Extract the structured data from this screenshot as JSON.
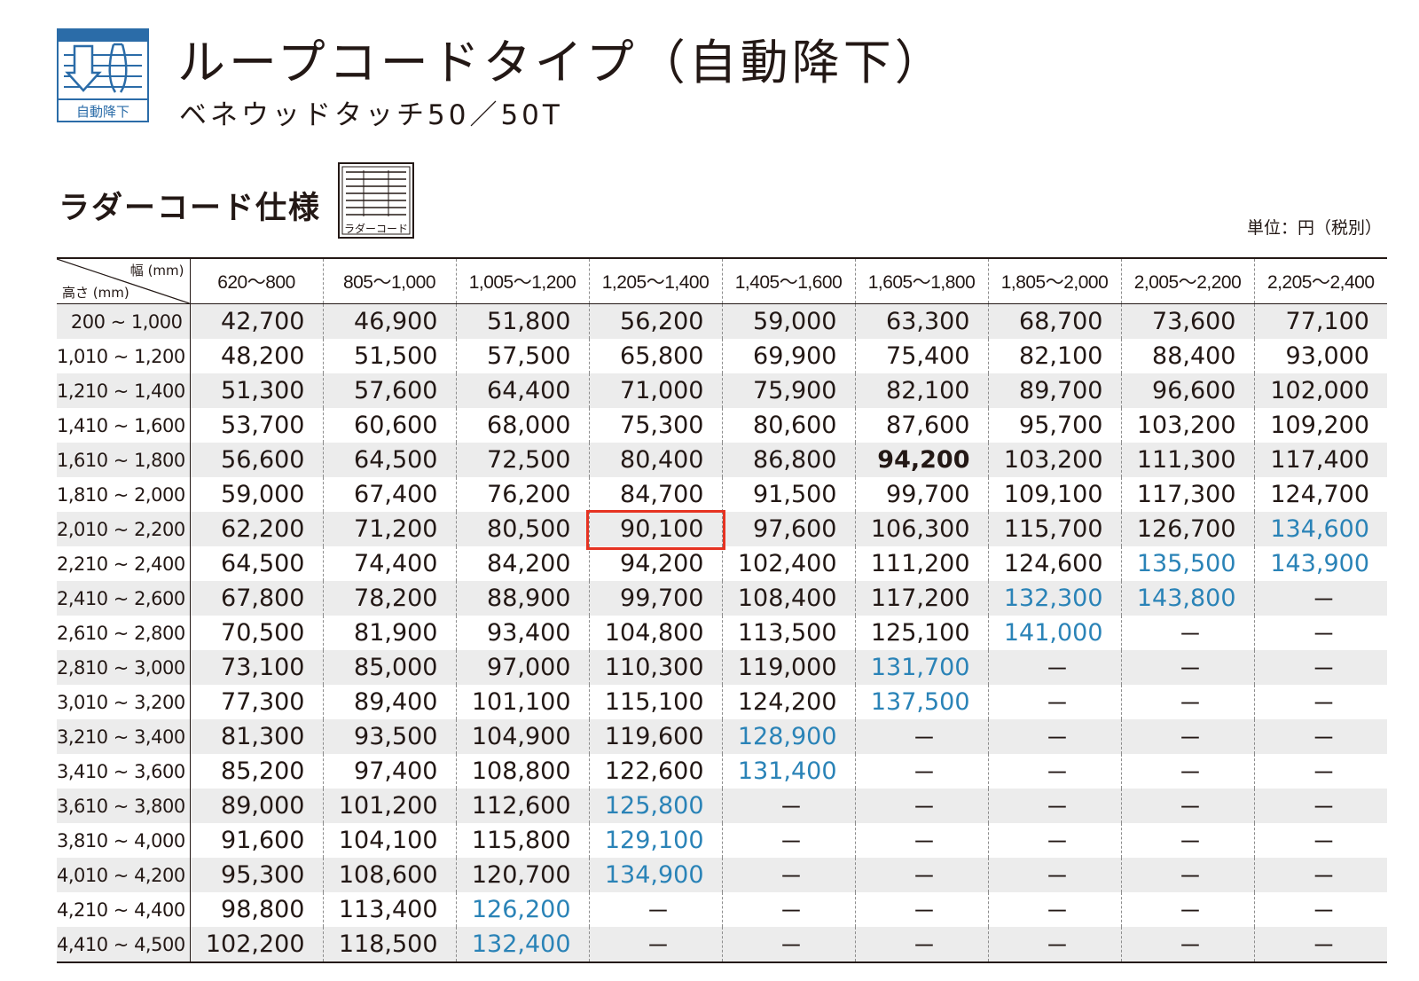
{
  "header": {
    "icon_label": "自動降下",
    "title": "ループコードタイプ（自動降下）",
    "subtitle": "ベネウッドタッチ50／50T"
  },
  "section": {
    "title": "ラダーコード仕様",
    "icon_label": "ラダーコード",
    "unit": "単位：円（税別）"
  },
  "table": {
    "corner_width": "幅 (mm)",
    "corner_height": "高さ (mm)",
    "columns": [
      "620～800",
      "805～1,000",
      "1,005～1,200",
      "1,205～1,400",
      "1,405～1,600",
      "1,605～1,800",
      "1,805～2,000",
      "2,005～2,200",
      "2,205～2,400"
    ],
    "rows": [
      {
        "height": "200 ~ 1,000",
        "values": [
          "42,700",
          "46,900",
          "51,800",
          "56,200",
          "59,000",
          "63,300",
          "68,700",
          "73,600",
          "77,100"
        ]
      },
      {
        "height": "1,010 ~ 1,200",
        "values": [
          "48,200",
          "51,500",
          "57,500",
          "65,800",
          "69,900",
          "75,400",
          "82,100",
          "88,400",
          "93,000"
        ]
      },
      {
        "height": "1,210 ~ 1,400",
        "values": [
          "51,300",
          "57,600",
          "64,400",
          "71,000",
          "75,900",
          "82,100",
          "89,700",
          "96,600",
          "102,000"
        ]
      },
      {
        "height": "1,410 ~ 1,600",
        "values": [
          "53,700",
          "60,600",
          "68,000",
          "75,300",
          "80,600",
          "87,600",
          "95,700",
          "103,200",
          "109,200"
        ]
      },
      {
        "height": "1,610 ~ 1,800",
        "values": [
          "56,600",
          "64,500",
          "72,500",
          "80,400",
          "86,800",
          "94,200",
          "103,200",
          "111,300",
          "117,400"
        ]
      },
      {
        "height": "1,810 ~ 2,000",
        "values": [
          "59,000",
          "67,400",
          "76,200",
          "84,700",
          "91,500",
          "99,700",
          "109,100",
          "117,300",
          "124,700"
        ]
      },
      {
        "height": "2,010 ~ 2,200",
        "values": [
          "62,200",
          "71,200",
          "80,500",
          "90,100",
          "97,600",
          "106,300",
          "115,700",
          "126,700",
          "134,600"
        ]
      },
      {
        "height": "2,210 ~ 2,400",
        "values": [
          "64,500",
          "74,400",
          "84,200",
          "94,200",
          "102,400",
          "111,200",
          "124,600",
          "135,500",
          "143,900"
        ]
      },
      {
        "height": "2,410 ~ 2,600",
        "values": [
          "67,800",
          "78,200",
          "88,900",
          "99,700",
          "108,400",
          "117,200",
          "132,300",
          "143,800",
          "－"
        ]
      },
      {
        "height": "2,610 ~ 2,800",
        "values": [
          "70,500",
          "81,900",
          "93,400",
          "104,800",
          "113,500",
          "125,100",
          "141,000",
          "－",
          "－"
        ]
      },
      {
        "height": "2,810 ~ 3,000",
        "values": [
          "73,100",
          "85,000",
          "97,000",
          "110,300",
          "119,000",
          "131,700",
          "－",
          "－",
          "－"
        ]
      },
      {
        "height": "3,010 ~ 3,200",
        "values": [
          "77,300",
          "89,400",
          "101,100",
          "115,100",
          "124,200",
          "137,500",
          "－",
          "－",
          "－"
        ]
      },
      {
        "height": "3,210 ~ 3,400",
        "values": [
          "81,300",
          "93,500",
          "104,900",
          "119,600",
          "128,900",
          "－",
          "－",
          "－",
          "－"
        ]
      },
      {
        "height": "3,410 ~ 3,600",
        "values": [
          "85,200",
          "97,400",
          "108,800",
          "122,600",
          "131,400",
          "－",
          "－",
          "－",
          "－"
        ]
      },
      {
        "height": "3,610 ~ 3,800",
        "values": [
          "89,000",
          "101,200",
          "112,600",
          "125,800",
          "－",
          "－",
          "－",
          "－",
          "－"
        ]
      },
      {
        "height": "3,810 ~ 4,000",
        "values": [
          "91,600",
          "104,100",
          "115,800",
          "129,100",
          "－",
          "－",
          "－",
          "－",
          "－"
        ]
      },
      {
        "height": "4,010 ~ 4,200",
        "values": [
          "95,300",
          "108,600",
          "120,700",
          "134,900",
          "－",
          "－",
          "－",
          "－",
          "－"
        ]
      },
      {
        "height": "4,210 ~ 4,400",
        "values": [
          "98,800",
          "113,400",
          "126,200",
          "－",
          "－",
          "－",
          "－",
          "－",
          "－"
        ]
      },
      {
        "height": "4,410 ~ 4,500",
        "values": [
          "102,200",
          "118,500",
          "132,400",
          "－",
          "－",
          "－",
          "－",
          "－",
          "－"
        ]
      }
    ],
    "blue_cells": [
      [
        6,
        8
      ],
      [
        7,
        7
      ],
      [
        7,
        8
      ],
      [
        8,
        6
      ],
      [
        8,
        7
      ],
      [
        9,
        6
      ],
      [
        10,
        5
      ],
      [
        11,
        5
      ],
      [
        12,
        4
      ],
      [
        13,
        4
      ],
      [
        14,
        3
      ],
      [
        15,
        3
      ],
      [
        16,
        3
      ],
      [
        17,
        2
      ],
      [
        18,
        2
      ]
    ],
    "bold_cells": [
      [
        4,
        5
      ]
    ],
    "highlight_cells": [
      [
        6,
        3
      ]
    ],
    "colors": {
      "blue": "#2a83b7",
      "highlight": "#e63322",
      "shade": "#ececec",
      "icon": "#2b6ca8"
    }
  }
}
